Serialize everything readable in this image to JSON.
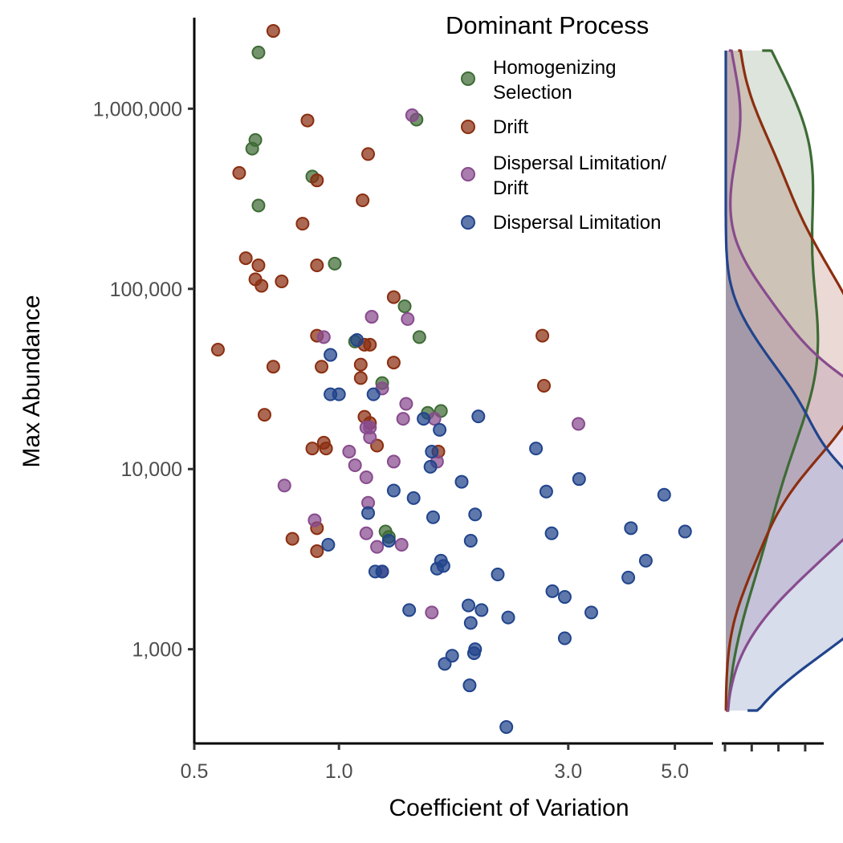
{
  "chart_data": {
    "type": "scatter",
    "xlabel": "Coefficient of Variation",
    "ylabel": "Max Abundance",
    "x_scale": "log",
    "y_scale": "log",
    "xlim": [
      0.5,
      6.0
    ],
    "ylim": [
      300,
      3200000
    ],
    "x_ticks": [
      {
        "value": 0.5,
        "label": "0.5"
      },
      {
        "value": 1.0,
        "label": "1.0"
      },
      {
        "value": 3.0,
        "label": "3.0"
      },
      {
        "value": 5.0,
        "label": "5.0"
      }
    ],
    "y_ticks": [
      {
        "value": 1000,
        "label": "1,000"
      },
      {
        "value": 10000,
        "label": "10,000"
      },
      {
        "value": 100000,
        "label": "100,000"
      },
      {
        "value": 1000000,
        "label": "1,000,000"
      }
    ],
    "grid": false,
    "legend": {
      "title": "Dominant Process",
      "placement": "top-right"
    },
    "marginal": {
      "type": "density",
      "axis": "y",
      "placement": "right",
      "tick_count": 4
    },
    "series": [
      {
        "name": "Homogenizing Selection",
        "legend_lines": [
          "Homogenizing",
          "Selection"
        ],
        "color": "#3E6B35",
        "points": [
          [
            0.68,
            2050000
          ],
          [
            0.67,
            670000
          ],
          [
            0.66,
            600000
          ],
          [
            0.68,
            290000
          ],
          [
            0.88,
            420000
          ],
          [
            1.45,
            870000
          ],
          [
            0.98,
            138000
          ],
          [
            1.37,
            80000
          ],
          [
            1.47,
            54000
          ],
          [
            1.08,
            51000
          ],
          [
            1.23,
            30000
          ],
          [
            1.53,
            20500
          ],
          [
            1.63,
            21000
          ],
          [
            1.25,
            4500
          ],
          [
            1.27,
            4200
          ]
        ]
      },
      {
        "name": "Drift",
        "legend_lines": [
          "Drift"
        ],
        "color": "#8B2E10",
        "points": [
          [
            0.73,
            2700000
          ],
          [
            0.86,
            860000
          ],
          [
            0.62,
            440000
          ],
          [
            0.9,
            400000
          ],
          [
            1.15,
            560000
          ],
          [
            1.12,
            310000
          ],
          [
            0.84,
            230000
          ],
          [
            0.64,
            148000
          ],
          [
            0.68,
            135000
          ],
          [
            0.67,
            113000
          ],
          [
            0.69,
            104000
          ],
          [
            0.76,
            110000
          ],
          [
            0.9,
            135000
          ],
          [
            1.3,
            90000
          ],
          [
            0.56,
            46000
          ],
          [
            0.9,
            55000
          ],
          [
            1.13,
            49000
          ],
          [
            1.16,
            49000
          ],
          [
            1.3,
            39000
          ],
          [
            1.11,
            38000
          ],
          [
            0.92,
            37000
          ],
          [
            0.73,
            37000
          ],
          [
            1.11,
            32000
          ],
          [
            0.7,
            20000
          ],
          [
            1.13,
            19500
          ],
          [
            1.16,
            18000
          ],
          [
            1.2,
            13500
          ],
          [
            0.93,
            14000
          ],
          [
            0.88,
            13000
          ],
          [
            0.94,
            13000
          ],
          [
            1.61,
            12500
          ],
          [
            0.8,
            4100
          ],
          [
            0.9,
            4700
          ],
          [
            0.9,
            3500
          ],
          [
            2.65,
            55000
          ],
          [
            2.67,
            29000
          ]
        ]
      },
      {
        "name": "Dispersal Limitation/ Drift",
        "legend_lines": [
          "Dispersal Limitation/",
          "Drift"
        ],
        "color": "#884B8E",
        "points": [
          [
            1.42,
            920000
          ],
          [
            1.17,
            70000
          ],
          [
            1.39,
            68000
          ],
          [
            0.93,
            54000
          ],
          [
            1.23,
            28000
          ],
          [
            1.38,
            23000
          ],
          [
            1.36,
            19000
          ],
          [
            1.58,
            19000
          ],
          [
            1.14,
            17000
          ],
          [
            1.16,
            17000
          ],
          [
            1.16,
            15000
          ],
          [
            1.05,
            12500
          ],
          [
            1.08,
            10500
          ],
          [
            1.3,
            11000
          ],
          [
            1.6,
            11000
          ],
          [
            1.14,
            9000
          ],
          [
            0.77,
            8100
          ],
          [
            1.15,
            6500
          ],
          [
            0.89,
            5200
          ],
          [
            1.14,
            4400
          ],
          [
            1.2,
            3700
          ],
          [
            1.35,
            3800
          ],
          [
            1.23,
            2700
          ],
          [
            1.56,
            1600
          ],
          [
            3.15,
            17800
          ]
        ]
      },
      {
        "name": "Dispersal Limitation",
        "legend_lines": [
          "Dispersal Limitation"
        ],
        "color": "#21448C",
        "points": [
          [
            1.09,
            52000
          ],
          [
            0.96,
            43000
          ],
          [
            1.0,
            26000
          ],
          [
            0.96,
            26000
          ],
          [
            1.18,
            26000
          ],
          [
            1.5,
            19000
          ],
          [
            1.62,
            16500
          ],
          [
            1.56,
            12500
          ],
          [
            1.55,
            10300
          ],
          [
            1.95,
            19600
          ],
          [
            2.57,
            13000
          ],
          [
            1.8,
            8500
          ],
          [
            1.3,
            7600
          ],
          [
            1.43,
            6900
          ],
          [
            1.15,
            5700
          ],
          [
            1.57,
            5400
          ],
          [
            1.92,
            5600
          ],
          [
            1.88,
            4000
          ],
          [
            1.27,
            4000
          ],
          [
            0.95,
            3800
          ],
          [
            1.63,
            3100
          ],
          [
            1.65,
            2900
          ],
          [
            1.6,
            2800
          ],
          [
            1.19,
            2700
          ],
          [
            1.23,
            2700
          ],
          [
            1.4,
            1650
          ],
          [
            2.14,
            2600
          ],
          [
            1.86,
            1750
          ],
          [
            1.88,
            1400
          ],
          [
            1.98,
            1650
          ],
          [
            2.25,
            1500
          ],
          [
            1.92,
            1000
          ],
          [
            1.91,
            950
          ],
          [
            1.72,
            920
          ],
          [
            1.66,
            830
          ],
          [
            1.87,
            630
          ],
          [
            2.23,
            370
          ],
          [
            2.7,
            7500
          ],
          [
            3.16,
            8800
          ],
          [
            2.77,
            4400
          ],
          [
            2.78,
            2100
          ],
          [
            2.95,
            1950
          ],
          [
            2.95,
            1150
          ],
          [
            3.35,
            1600
          ],
          [
            4.05,
            4700
          ],
          [
            4.35,
            3100
          ],
          [
            4.0,
            2500
          ],
          [
            4.75,
            7200
          ],
          [
            5.25,
            4500
          ]
        ]
      }
    ]
  }
}
